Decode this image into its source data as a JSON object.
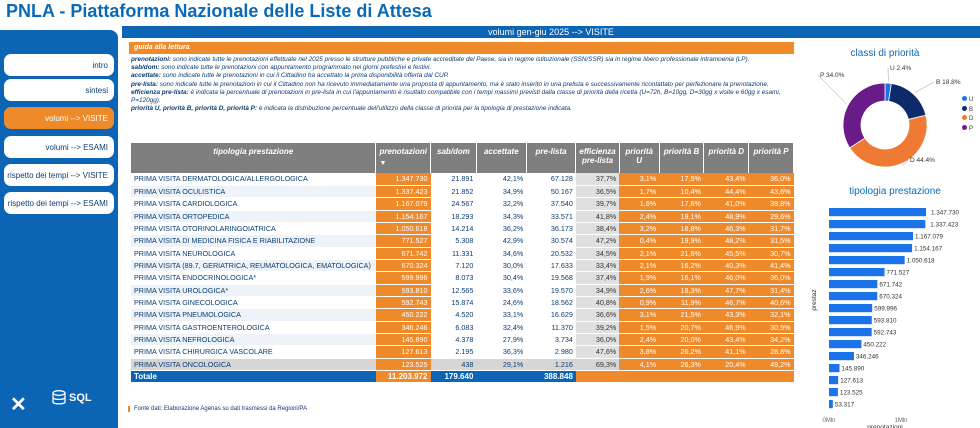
{
  "title": "PNLA - Piattaforma Nazionale delle Liste di Attesa",
  "top_bar": "volumi gen-giu 2025 --> VISITE",
  "nav": [
    {
      "label": "intro",
      "active": false
    },
    {
      "label": "sintesi",
      "active": false
    },
    {
      "label": "volumi --> VISITE",
      "active": true
    },
    {
      "label": "volumi --> ESAMI",
      "active": false
    },
    {
      "label": "rispetto dei tempi --> VISITE",
      "active": false
    },
    {
      "label": "rispetto dei tempi --> ESAMI",
      "active": false
    }
  ],
  "logo_sql": "SQL",
  "guide": {
    "heading": "guida alla lettura",
    "items": [
      {
        "term": "prenotazioni:",
        "text": " sono indicate tutte le prenotazioni effettuate nel 2025 presso le strutture pubbliche e private accreditate del Paese, sia in regime istituzionale (SSN/SSR) sia in regime libero professionale intramoenia (LP)."
      },
      {
        "term": "sab/dom:",
        "text": " sono indicate tutte le prenotazioni con appuntamento programmato nei giorni prefestivi e festivi."
      },
      {
        "term": "accettate:",
        "text": " sono indicate tutte le prenotazioni in cui il Cittadino ha accettato la prima disponibilità offerta dal CUP."
      },
      {
        "term": "pre-lista:",
        "text": " sono indicate tutte le prenotazioni in cui il Cittadino non ha ricevuto immediatamente una proposta di appuntamento, ma è stato inserito in una prelista e successivamente ricontattato per perfezionare la prenotazione."
      },
      {
        "term": "efficienza pre-lista:",
        "text": " è indicata la percentuale di prenotazioni in pre-lista in cui l'appuntamento è risultato compatibile con i tempi massimi previsti dalla classe di priorità della ricetta (U=72h, B=10gg, D=30gg x visite e 60gg x esami, P=120gg)."
      },
      {
        "term": "priorità U, priorità B, priorità D, priorità P:",
        "text": " è indicata la distribuzione percentuale dell'utilizzo della classe di priorità per la tipologia di prestazione indicata."
      }
    ]
  },
  "table": {
    "headers": [
      "tipologia prestazione",
      "prenotazioni",
      "sab/dom",
      "accettate",
      "pre-lista",
      "efficienza pre-lista",
      "priorità U",
      "priorità B",
      "priorità D",
      "priorità P"
    ],
    "sort_arrow": "▼",
    "rows": [
      [
        "PRIMA VISITA DERMATOLOGICA/ALLERGOLOGICA",
        "1.347.730",
        "21.891",
        "42,1%",
        "67.128",
        "37,7%",
        "3,1%",
        "17,5%",
        "43,4%",
        "36,0%"
      ],
      [
        "PRIMA VISITA OCULISTICA",
        "1.337.423",
        "21.852",
        "34,9%",
        "50.167",
        "36,5%",
        "1,7%",
        "10,4%",
        "44,4%",
        "43,6%"
      ],
      [
        "PRIMA VISITA CARDIOLOGICA",
        "1.167.079",
        "24.567",
        "32,2%",
        "37.540",
        "39,7%",
        "1,6%",
        "17,6%",
        "41,0%",
        "39,8%"
      ],
      [
        "PRIMA VISITA ORTOPEDICA",
        "1.154.167",
        "18.293",
        "34,3%",
        "33.571",
        "41,8%",
        "2,4%",
        "19,1%",
        "48,9%",
        "29,6%"
      ],
      [
        "PRIMA VISITA OTORINOLARINGOIATRICA",
        "1.050.618",
        "14.214",
        "36,2%",
        "36.173",
        "38,4%",
        "3,2%",
        "18,8%",
        "46,3%",
        "31,7%"
      ],
      [
        "PRIMA VISITA DI MEDICINA FISICA E RIABILITAZIONE",
        "771.527",
        "5.308",
        "42,9%",
        "30.574",
        "47,2%",
        "0,4%",
        "19,9%",
        "48,2%",
        "31,5%"
      ],
      [
        "PRIMA VISITA NEUROLOGICA",
        "671.742",
        "11.331",
        "34,6%",
        "20.532",
        "34,5%",
        "2,1%",
        "21,6%",
        "45,5%",
        "30,7%"
      ],
      [
        "PRIMA VISITA (89.7, GERIATRICA, REUMATOLOGICA, EMATOLOGICA)",
        "670.324",
        "7.120",
        "30,0%",
        "17.633",
        "33,4%",
        "2,1%",
        "16,2%",
        "40,3%",
        "41,4%"
      ],
      [
        "PRIMA VISITA ENDOCRINOLOGICA*",
        "599.996",
        "8.073",
        "30,4%",
        "19.568",
        "37,4%",
        "1,9%",
        "16,1%",
        "46,0%",
        "36,0%"
      ],
      [
        "PRIMA VISITA UROLOGICA*",
        "593.810",
        "12.565",
        "33,6%",
        "19.570",
        "34,9%",
        "2,6%",
        "18,3%",
        "47,7%",
        "31,4%"
      ],
      [
        "PRIMA VISITA GINECOLOGICA",
        "592.743",
        "15.874",
        "24,6%",
        "18.562",
        "40,8%",
        "0,9%",
        "11,9%",
        "46,7%",
        "40,6%"
      ],
      [
        "PRIMA VISITA PNEUMOLOGICA",
        "450.222",
        "4.520",
        "33,1%",
        "16.629",
        "36,6%",
        "3,1%",
        "21,5%",
        "43,3%",
        "32,1%"
      ],
      [
        "PRIMA VISITA GASTROENTEROLOGICA",
        "346.246",
        "6.083",
        "32,4%",
        "11.370",
        "39,2%",
        "1,5%",
        "20,7%",
        "46,9%",
        "30,9%"
      ],
      [
        "PRIMA VISITA NEFROLOGICA",
        "145.890",
        "4.378",
        "27,9%",
        "3.734",
        "36,0%",
        "2,4%",
        "20,0%",
        "43,4%",
        "34,2%"
      ],
      [
        "PRIMA VISITA CHIRURGICA VASCOLARE",
        "127.613",
        "2.195",
        "36,3%",
        "2.980",
        "47,6%",
        "3,8%",
        "26,2%",
        "41,1%",
        "28,8%"
      ],
      [
        "PRIMA VISITA ONCOLOGICA",
        "123.525",
        "438",
        "29,1%",
        "1.216",
        "69,3%",
        "4,1%",
        "26,3%",
        "20,4%",
        "49,2%"
      ]
    ],
    "total": [
      "Totale",
      "11.203.972",
      "179.640",
      "",
      "388.848",
      "",
      "",
      "",
      "",
      ""
    ]
  },
  "source": "Fonte dati: Elaborazione Agenas su dati trasmessi da Regioni/PA",
  "chart_data": [
    {
      "type": "pie",
      "title": "classi di priorità",
      "donut": true,
      "categories": [
        "U",
        "B",
        "D",
        "P"
      ],
      "values": [
        2.4,
        18.8,
        44.4,
        34.0
      ],
      "data_labels": [
        "U 2.4%",
        "B 18.8%",
        "D 44.4%",
        "P 34.0%"
      ],
      "colors": [
        "#1a73e8",
        "#0d2a6b",
        "#ef7a33",
        "#6a1b8a"
      ],
      "legend_position": "right"
    },
    {
      "type": "bar",
      "orientation": "horizontal",
      "title": "tipologia prestazione",
      "ylabel": "prestaz",
      "xlabel": "prenotazioni",
      "xticks": [
        "0Mln",
        "1Mln"
      ],
      "xlim": [
        0,
        1400000
      ],
      "values": [
        1347730,
        1337423,
        1167079,
        1154167,
        1050618,
        771527,
        671742,
        670324,
        599996,
        593810,
        592743,
        450222,
        346246,
        145890,
        127613,
        123525,
        53317
      ],
      "data_labels": [
        "1.347.730",
        "1.337.423",
        "1.167.079",
        "1.154.167",
        "1.050.618",
        "771.527",
        "671.742",
        "670.324",
        "599.996",
        "593.810",
        "592.743",
        "450.222",
        "346.246",
        "145.890",
        "127.613",
        "123.525",
        "53.317"
      ],
      "color": "#1a73e8"
    }
  ]
}
